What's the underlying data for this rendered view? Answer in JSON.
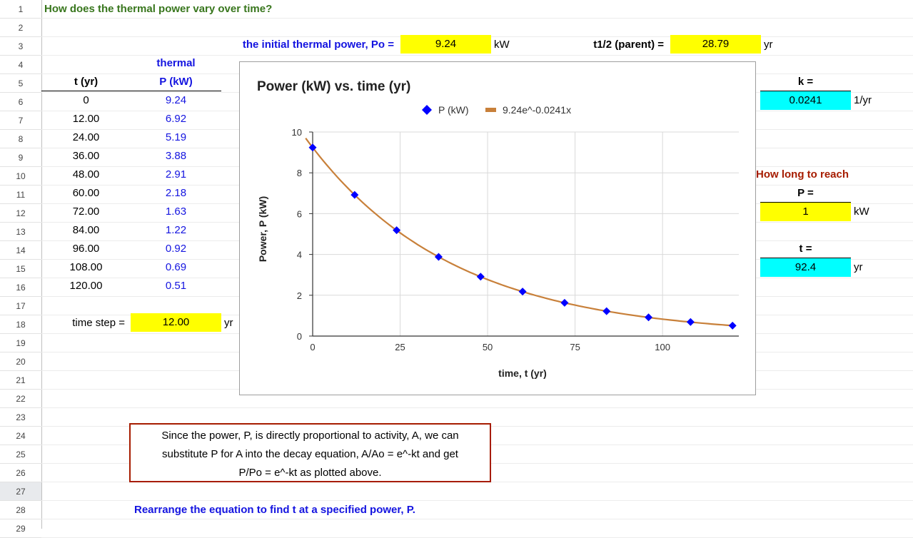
{
  "rows": [
    "1",
    "2",
    "3",
    "4",
    "5",
    "6",
    "7",
    "8",
    "9",
    "10",
    "11",
    "12",
    "13",
    "14",
    "15",
    "16",
    "17",
    "18",
    "19",
    "20",
    "21",
    "22",
    "23",
    "24",
    "25",
    "26",
    "27",
    "28",
    "29"
  ],
  "title": "How does the thermal power vary over time?",
  "params": {
    "p0_label": "the initial thermal power, Po =",
    "p0_value": "9.24",
    "p0_unit": "kW",
    "half_life_label": "t1/2 (parent) =",
    "half_life_value": "28.79",
    "half_life_unit": "yr"
  },
  "table": {
    "header_top": "thermal",
    "col_t": "t (yr)",
    "col_p": "P (kW)",
    "rows": [
      {
        "t": "0",
        "p": "9.24"
      },
      {
        "t": "12.00",
        "p": "6.92"
      },
      {
        "t": "24.00",
        "p": "5.19"
      },
      {
        "t": "36.00",
        "p": "3.88"
      },
      {
        "t": "48.00",
        "p": "2.91"
      },
      {
        "t": "60.00",
        "p": "2.18"
      },
      {
        "t": "72.00",
        "p": "1.63"
      },
      {
        "t": "84.00",
        "p": "1.22"
      },
      {
        "t": "96.00",
        "p": "0.92"
      },
      {
        "t": "108.00",
        "p": "0.69"
      },
      {
        "t": "120.00",
        "p": "0.51"
      }
    ],
    "timestep_label": "time step =",
    "timestep_value": "12.00",
    "timestep_unit": "yr"
  },
  "k_box": {
    "label": "k =",
    "value": "0.0241",
    "unit": "1/yr"
  },
  "reach": {
    "title": "How long to reach",
    "p_label": "P =",
    "p_value": "1",
    "p_unit": "kW",
    "t_label": "t =",
    "t_value": "92.4",
    "t_unit": "yr"
  },
  "note": {
    "lines": [
      "Since the power, P, is directly proportional to activity, A, we can",
      "substitute P for A into the decay equation, A/Ao = e^-kt and get",
      "P/Po = e^-kt as plotted above."
    ]
  },
  "footer": "Rearrange the equation to find t at a specified power, P.",
  "chart_data": {
    "type": "scatter",
    "title": "Power (kW) vs. time (yr)",
    "xlabel": "time, t (yr)",
    "ylabel": "Power, P (kW)",
    "xlim": [
      0,
      120
    ],
    "ylim": [
      0,
      10
    ],
    "x_ticks": [
      0,
      25,
      50,
      75,
      100
    ],
    "y_ticks": [
      0,
      2,
      4,
      6,
      8,
      10
    ],
    "grid": true,
    "legend_position": "top",
    "series": [
      {
        "name": "P (kW)",
        "color": "#0000ff",
        "marker": "diamond",
        "x": [
          0,
          12,
          24,
          36,
          48,
          60,
          72,
          84,
          96,
          108,
          120
        ],
        "y": [
          9.24,
          6.92,
          5.19,
          3.88,
          2.91,
          2.18,
          1.63,
          1.22,
          0.92,
          0.69,
          0.51
        ]
      }
    ],
    "trendline": {
      "name": "9.24e^-0.0241x",
      "color": "#c8803a",
      "a": 9.24,
      "k": 0.0241,
      "x_start": -2
    }
  }
}
